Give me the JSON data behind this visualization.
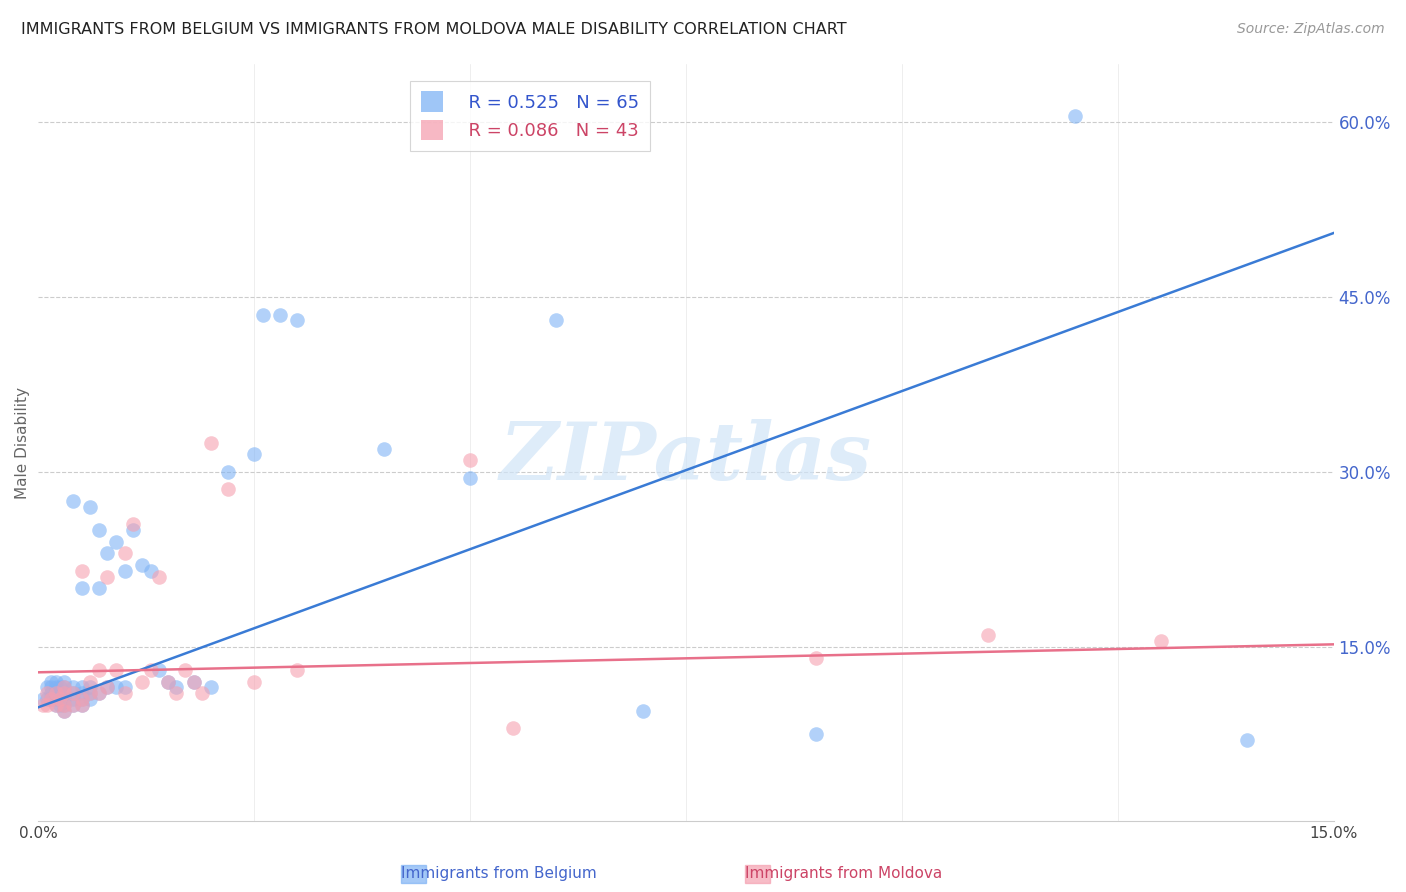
{
  "title": "IMMIGRANTS FROM BELGIUM VS IMMIGRANTS FROM MOLDOVA MALE DISABILITY CORRELATION CHART",
  "source": "Source: ZipAtlas.com",
  "ylabel": "Male Disability",
  "right_yticks": [
    "60.0%",
    "45.0%",
    "30.0%",
    "15.0%"
  ],
  "right_ytick_vals": [
    0.6,
    0.45,
    0.3,
    0.15
  ],
  "xmin": 0.0,
  "xmax": 0.15,
  "ymin": 0.0,
  "ymax": 0.65,
  "belgium_color": "#7fb3f5",
  "moldova_color": "#f5a0b0",
  "belgium_line_color": "#3a7bd5",
  "moldova_line_color": "#e8708a",
  "legend_belgium_R": "R = 0.525",
  "legend_belgium_N": "N = 65",
  "legend_moldova_R": "R = 0.086",
  "legend_moldova_N": "N = 43",
  "watermark": "ZIPatlas",
  "belgium_x": [
    0.0005,
    0.001,
    0.001,
    0.0015,
    0.0015,
    0.0015,
    0.0015,
    0.002,
    0.002,
    0.002,
    0.002,
    0.002,
    0.0025,
    0.0025,
    0.0025,
    0.0025,
    0.003,
    0.003,
    0.003,
    0.003,
    0.003,
    0.003,
    0.004,
    0.004,
    0.004,
    0.004,
    0.004,
    0.005,
    0.005,
    0.005,
    0.005,
    0.005,
    0.006,
    0.006,
    0.006,
    0.006,
    0.007,
    0.007,
    0.007,
    0.008,
    0.008,
    0.009,
    0.009,
    0.01,
    0.01,
    0.011,
    0.012,
    0.013,
    0.014,
    0.015,
    0.016,
    0.018,
    0.02,
    0.022,
    0.025,
    0.026,
    0.028,
    0.03,
    0.04,
    0.05,
    0.06,
    0.07,
    0.09,
    0.12,
    0.14
  ],
  "belgium_y": [
    0.105,
    0.105,
    0.115,
    0.105,
    0.11,
    0.115,
    0.12,
    0.1,
    0.105,
    0.11,
    0.115,
    0.12,
    0.1,
    0.105,
    0.11,
    0.115,
    0.095,
    0.1,
    0.105,
    0.11,
    0.115,
    0.12,
    0.1,
    0.105,
    0.11,
    0.115,
    0.275,
    0.1,
    0.105,
    0.11,
    0.115,
    0.2,
    0.105,
    0.11,
    0.115,
    0.27,
    0.11,
    0.2,
    0.25,
    0.115,
    0.23,
    0.115,
    0.24,
    0.115,
    0.215,
    0.25,
    0.22,
    0.215,
    0.13,
    0.12,
    0.115,
    0.12,
    0.115,
    0.3,
    0.315,
    0.435,
    0.435,
    0.43,
    0.32,
    0.295,
    0.43,
    0.095,
    0.075,
    0.605,
    0.07
  ],
  "moldova_x": [
    0.0005,
    0.001,
    0.001,
    0.0015,
    0.002,
    0.002,
    0.0025,
    0.003,
    0.003,
    0.003,
    0.003,
    0.004,
    0.004,
    0.005,
    0.005,
    0.005,
    0.006,
    0.006,
    0.007,
    0.007,
    0.008,
    0.008,
    0.009,
    0.01,
    0.01,
    0.011,
    0.012,
    0.013,
    0.014,
    0.015,
    0.016,
    0.017,
    0.018,
    0.019,
    0.02,
    0.022,
    0.025,
    0.03,
    0.055,
    0.09,
    0.11,
    0.13,
    0.05
  ],
  "moldova_y": [
    0.1,
    0.1,
    0.11,
    0.105,
    0.1,
    0.11,
    0.105,
    0.095,
    0.1,
    0.11,
    0.115,
    0.1,
    0.11,
    0.1,
    0.105,
    0.215,
    0.11,
    0.12,
    0.11,
    0.13,
    0.115,
    0.21,
    0.13,
    0.11,
    0.23,
    0.255,
    0.12,
    0.13,
    0.21,
    0.12,
    0.11,
    0.13,
    0.12,
    0.11,
    0.325,
    0.285,
    0.12,
    0.13,
    0.08,
    0.14,
    0.16,
    0.155,
    0.31
  ],
  "belgium_trend_x": [
    0.0,
    0.15
  ],
  "belgium_trend_y": [
    0.098,
    0.505
  ],
  "moldova_trend_x": [
    0.0,
    0.15
  ],
  "moldova_trend_y": [
    0.128,
    0.152
  ]
}
